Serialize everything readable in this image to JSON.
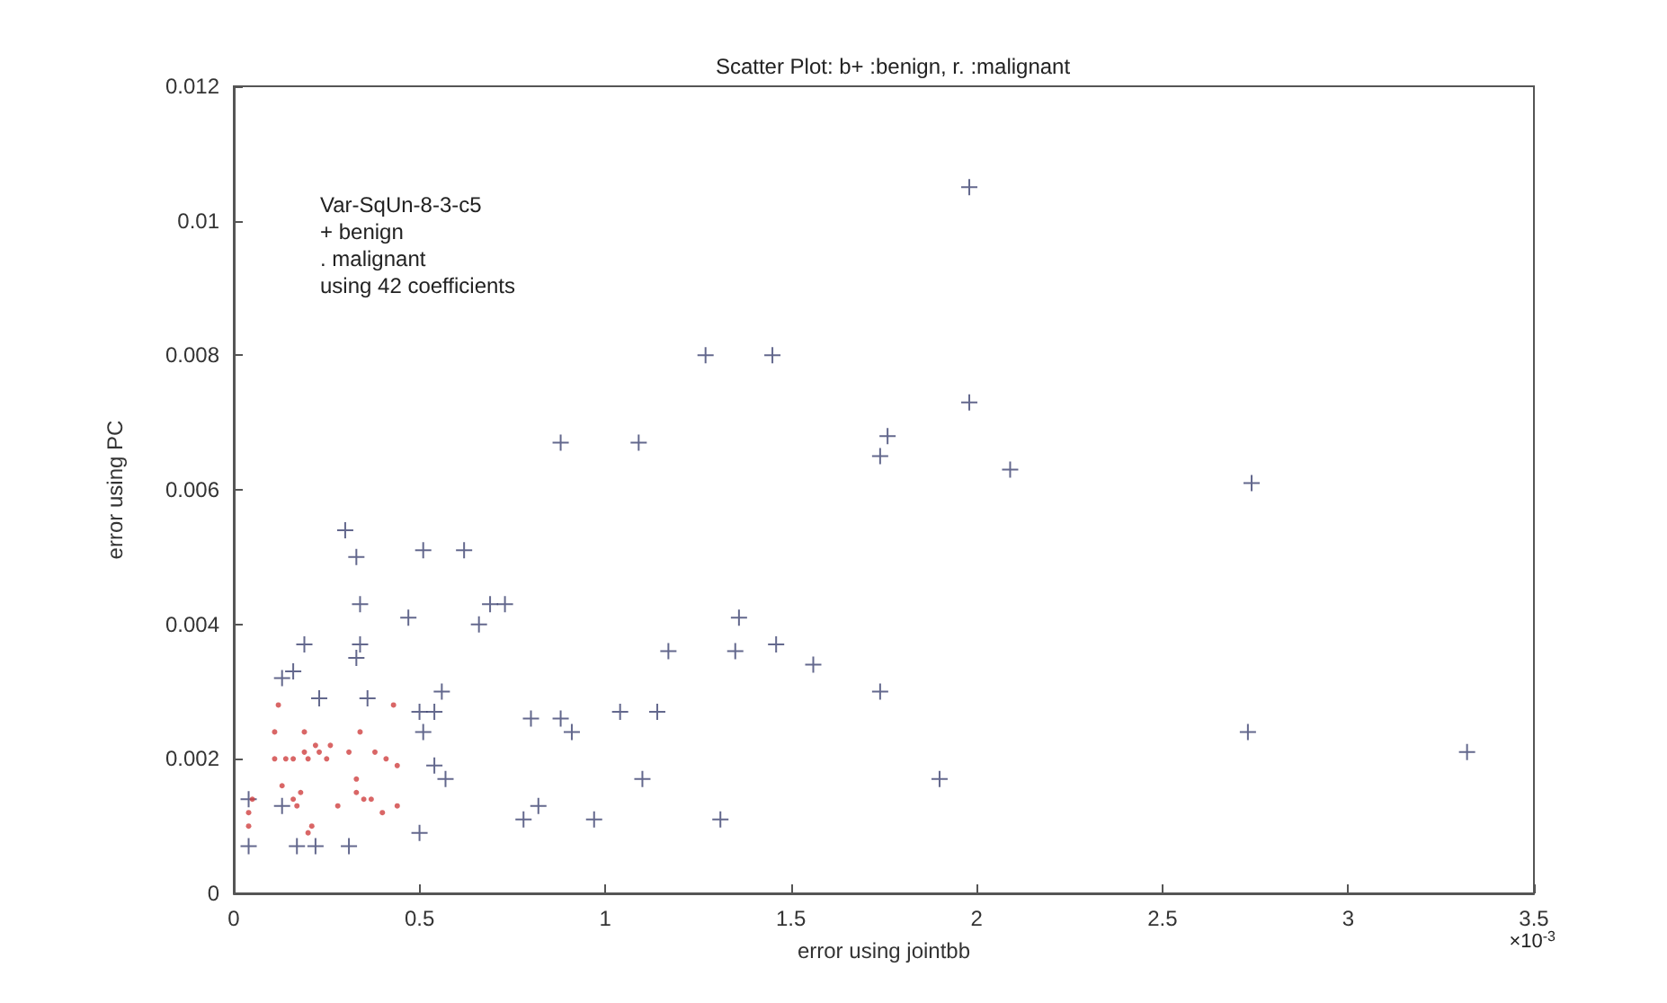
{
  "chart_data": {
    "type": "scatter",
    "title": "Scatter Plot: b+ :benign, r. :malignant",
    "xlabel": "error using jointbb",
    "ylabel": "error using PC",
    "annotations": [
      "Var-SqUn-8-3-c5",
      "+ benign",
      ". malignant",
      "using 42 coefficients",
      "×10$^{-3}$"
    ],
    "xlim": [
      0,
      3.5
    ],
    "xticks": [
      0,
      0.5,
      1,
      1.5,
      2,
      2.5,
      3,
      3.5
    ],
    "ylim": [
      0,
      0.012
    ],
    "yticks": [
      0,
      0.002,
      0.004,
      0.006,
      0.008,
      0.01,
      0.012
    ],
    "series": [
      {
        "color": "#3c4270",
        "marker": "cross",
        "x": [
          0.3,
          0.33,
          0.34,
          0.34,
          0.33,
          0.36,
          0.23,
          0.19,
          0.16,
          0.13,
          0.51,
          0.62,
          0.47,
          0.69,
          0.73,
          0.66,
          0.56,
          0.5,
          0.54,
          0.51,
          0.54,
          0.57,
          0.5,
          0.04,
          0.13,
          0.04,
          0.17,
          0.22,
          0.31,
          1.27,
          1.45,
          0.88,
          1.09,
          1.98,
          1.76,
          1.74,
          2.09,
          2.74,
          1.36,
          1.17,
          1.35,
          1.46,
          1.56,
          1.74,
          0.8,
          0.88,
          0.91,
          1.04,
          1.14,
          2.73,
          3.32,
          1.1,
          1.9,
          0.82,
          0.78,
          0.97,
          1.31,
          1.98
        ],
        "values": [
          0.0054,
          0.005,
          0.0043,
          0.0037,
          0.0035,
          0.0029,
          0.0029,
          0.0037,
          0.0033,
          0.0032,
          0.0051,
          0.0051,
          0.0041,
          0.0043,
          0.0043,
          0.004,
          0.003,
          0.0027,
          0.0027,
          0.0024,
          0.0019,
          0.0017,
          0.0009,
          0.0014,
          0.0013,
          0.0007,
          0.0007,
          0.0007,
          0.0007,
          0.008,
          0.008,
          0.0067,
          0.0067,
          0.0073,
          0.0068,
          0.0065,
          0.0063,
          0.0061,
          0.0041,
          0.0036,
          0.0036,
          0.0037,
          0.0034,
          0.003,
          0.0026,
          0.0026,
          0.0024,
          0.0027,
          0.0027,
          0.0024,
          0.0021,
          0.0017,
          0.0017,
          0.0013,
          0.0011,
          0.0011,
          0.0011,
          0.0105
        ]
      },
      {
        "color": "#d04040",
        "marker": "circle",
        "x": [
          0.12,
          0.43,
          0.11,
          0.19,
          0.11,
          0.14,
          0.16,
          0.19,
          0.22,
          0.23,
          0.26,
          0.25,
          0.2,
          0.31,
          0.34,
          0.38,
          0.41,
          0.44,
          0.33,
          0.13,
          0.18,
          0.16,
          0.17,
          0.33,
          0.35,
          0.37,
          0.4,
          0.44,
          0.04,
          0.04,
          0.21,
          0.2,
          0.28,
          0.05
        ],
        "values": [
          0.0028,
          0.0028,
          0.0024,
          0.0024,
          0.002,
          0.002,
          0.002,
          0.0021,
          0.0022,
          0.0021,
          0.0022,
          0.002,
          0.002,
          0.0021,
          0.0024,
          0.0021,
          0.002,
          0.0019,
          0.0017,
          0.0016,
          0.0015,
          0.0014,
          0.0013,
          0.0015,
          0.0014,
          0.0014,
          0.0012,
          0.0013,
          0.001,
          0.0012,
          0.001,
          0.0009,
          0.0013,
          0.0014
        ]
      }
    ]
  }
}
